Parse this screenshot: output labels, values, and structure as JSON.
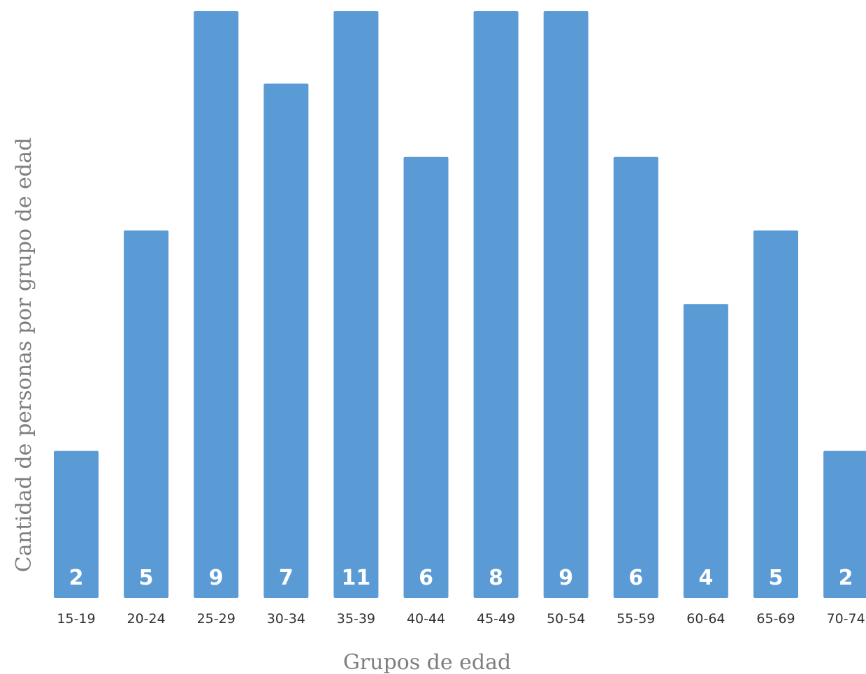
{
  "chart_data": {
    "type": "bar",
    "categories": [
      "15-19",
      "20-24",
      "25-29",
      "30-34",
      "35-39",
      "40-44",
      "45-49",
      "50-54",
      "55-59",
      "60-64",
      "65-69",
      "70-74"
    ],
    "values": [
      2,
      5,
      9,
      7,
      11,
      6,
      8,
      9,
      6,
      4,
      5,
      2
    ],
    "title": "",
    "xlabel": "Grupos de edad",
    "ylabel": "Cantidad de personas por grupo de edad",
    "data_labels": true,
    "grid": false,
    "legend": "none",
    "colors": {
      "bar": "#5b9bd5",
      "bar_label": "#ffffff",
      "tick_label": "#333333",
      "axis_title": "#7f7f7f"
    }
  }
}
